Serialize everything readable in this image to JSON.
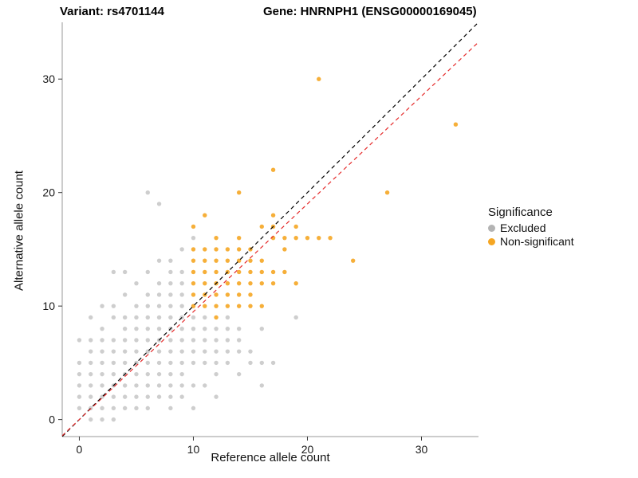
{
  "chart_data": {
    "type": "scatter",
    "titles": {
      "variant": "Variant: rs4701144",
      "gene": "Gene: HNRNPH1 (ENSG00000169045)"
    },
    "xlabel": "Reference allele count",
    "ylabel": "Alternative allele count",
    "xlim": [
      -1.5,
      35
    ],
    "ylim": [
      -1.5,
      35
    ],
    "xticks": [
      0,
      10,
      20,
      30
    ],
    "yticks": [
      0,
      10,
      20,
      30
    ],
    "grid": false,
    "legend": {
      "title": "Significance",
      "position": "right",
      "items": [
        {
          "label": "Excluded",
          "color": "#B3B3B3"
        },
        {
          "label": "Non-significant",
          "color": "#F5A623"
        }
      ]
    },
    "series": [
      {
        "name": "Excluded",
        "color": "#B3B3B3",
        "points": [
          [
            0,
            1
          ],
          [
            0,
            2
          ],
          [
            0,
            3
          ],
          [
            0,
            4
          ],
          [
            0,
            5
          ],
          [
            0,
            7
          ],
          [
            1,
            0
          ],
          [
            1,
            1
          ],
          [
            1,
            2
          ],
          [
            1,
            3
          ],
          [
            1,
            4
          ],
          [
            1,
            5
          ],
          [
            1,
            6
          ],
          [
            1,
            7
          ],
          [
            1,
            9
          ],
          [
            2,
            0
          ],
          [
            2,
            1
          ],
          [
            2,
            2
          ],
          [
            2,
            3
          ],
          [
            2,
            4
          ],
          [
            2,
            5
          ],
          [
            2,
            6
          ],
          [
            2,
            7
          ],
          [
            2,
            8
          ],
          [
            2,
            10
          ],
          [
            3,
            0
          ],
          [
            3,
            1
          ],
          [
            3,
            2
          ],
          [
            3,
            3
          ],
          [
            3,
            4
          ],
          [
            3,
            5
          ],
          [
            3,
            6
          ],
          [
            3,
            7
          ],
          [
            3,
            9
          ],
          [
            3,
            10
          ],
          [
            3,
            13
          ],
          [
            4,
            1
          ],
          [
            4,
            2
          ],
          [
            4,
            3
          ],
          [
            4,
            4
          ],
          [
            4,
            5
          ],
          [
            4,
            6
          ],
          [
            4,
            7
          ],
          [
            4,
            8
          ],
          [
            4,
            9
          ],
          [
            4,
            11
          ],
          [
            4,
            13
          ],
          [
            5,
            1
          ],
          [
            5,
            2
          ],
          [
            5,
            3
          ],
          [
            5,
            4
          ],
          [
            5,
            5
          ],
          [
            5,
            6
          ],
          [
            5,
            7
          ],
          [
            5,
            8
          ],
          [
            5,
            9
          ],
          [
            5,
            10
          ],
          [
            5,
            12
          ],
          [
            6,
            1
          ],
          [
            6,
            2
          ],
          [
            6,
            3
          ],
          [
            6,
            4
          ],
          [
            6,
            5
          ],
          [
            6,
            6
          ],
          [
            6,
            7
          ],
          [
            6,
            8
          ],
          [
            6,
            9
          ],
          [
            6,
            10
          ],
          [
            6,
            11
          ],
          [
            6,
            13
          ],
          [
            6,
            20
          ],
          [
            7,
            2
          ],
          [
            7,
            3
          ],
          [
            7,
            4
          ],
          [
            7,
            5
          ],
          [
            7,
            6
          ],
          [
            7,
            7
          ],
          [
            7,
            8
          ],
          [
            7,
            9
          ],
          [
            7,
            10
          ],
          [
            7,
            11
          ],
          [
            7,
            12
          ],
          [
            7,
            14
          ],
          [
            7,
            19
          ],
          [
            8,
            1
          ],
          [
            8,
            2
          ],
          [
            8,
            3
          ],
          [
            8,
            4
          ],
          [
            8,
            5
          ],
          [
            8,
            6
          ],
          [
            8,
            7
          ],
          [
            8,
            8
          ],
          [
            8,
            9
          ],
          [
            8,
            10
          ],
          [
            8,
            11
          ],
          [
            8,
            12
          ],
          [
            8,
            13
          ],
          [
            8,
            14
          ],
          [
            9,
            2
          ],
          [
            9,
            3
          ],
          [
            9,
            4
          ],
          [
            9,
            5
          ],
          [
            9,
            6
          ],
          [
            9,
            7
          ],
          [
            9,
            8
          ],
          [
            9,
            9
          ],
          [
            9,
            10
          ],
          [
            9,
            11
          ],
          [
            9,
            12
          ],
          [
            9,
            13
          ],
          [
            9,
            15
          ],
          [
            10,
            1
          ],
          [
            10,
            3
          ],
          [
            10,
            5
          ],
          [
            10,
            6
          ],
          [
            10,
            7
          ],
          [
            10,
            8
          ],
          [
            10,
            9
          ],
          [
            10,
            16
          ],
          [
            11,
            3
          ],
          [
            11,
            5
          ],
          [
            11,
            6
          ],
          [
            11,
            7
          ],
          [
            11,
            8
          ],
          [
            11,
            9
          ],
          [
            12,
            2
          ],
          [
            12,
            4
          ],
          [
            12,
            5
          ],
          [
            12,
            6
          ],
          [
            12,
            7
          ],
          [
            12,
            8
          ],
          [
            13,
            5
          ],
          [
            13,
            6
          ],
          [
            13,
            7
          ],
          [
            13,
            8
          ],
          [
            13,
            9
          ],
          [
            14,
            4
          ],
          [
            14,
            6
          ],
          [
            14,
            7
          ],
          [
            14,
            8
          ],
          [
            15,
            5
          ],
          [
            15,
            6
          ],
          [
            16,
            3
          ],
          [
            16,
            5
          ],
          [
            16,
            8
          ],
          [
            17,
            5
          ],
          [
            19,
            9
          ]
        ]
      },
      {
        "name": "Non-significant",
        "color": "#F5A623",
        "points": [
          [
            10,
            10
          ],
          [
            10,
            11
          ],
          [
            10,
            12
          ],
          [
            10,
            13
          ],
          [
            10,
            14
          ],
          [
            10,
            15
          ],
          [
            10,
            17
          ],
          [
            11,
            10
          ],
          [
            11,
            11
          ],
          [
            11,
            12
          ],
          [
            11,
            13
          ],
          [
            11,
            14
          ],
          [
            11,
            15
          ],
          [
            11,
            18
          ],
          [
            12,
            9
          ],
          [
            12,
            10
          ],
          [
            12,
            11
          ],
          [
            12,
            12
          ],
          [
            12,
            13
          ],
          [
            12,
            14
          ],
          [
            12,
            15
          ],
          [
            12,
            16
          ],
          [
            13,
            10
          ],
          [
            13,
            11
          ],
          [
            13,
            12
          ],
          [
            13,
            13
          ],
          [
            13,
            14
          ],
          [
            13,
            15
          ],
          [
            14,
            10
          ],
          [
            14,
            11
          ],
          [
            14,
            12
          ],
          [
            14,
            13
          ],
          [
            14,
            14
          ],
          [
            14,
            15
          ],
          [
            14,
            16
          ],
          [
            14,
            20
          ],
          [
            15,
            10
          ],
          [
            15,
            11
          ],
          [
            15,
            12
          ],
          [
            15,
            13
          ],
          [
            15,
            14
          ],
          [
            15,
            15
          ],
          [
            16,
            10
          ],
          [
            16,
            12
          ],
          [
            16,
            13
          ],
          [
            16,
            14
          ],
          [
            16,
            17
          ],
          [
            17,
            12
          ],
          [
            17,
            13
          ],
          [
            17,
            16
          ],
          [
            17,
            17
          ],
          [
            17,
            18
          ],
          [
            17,
            22
          ],
          [
            18,
            13
          ],
          [
            18,
            15
          ],
          [
            18,
            16
          ],
          [
            19,
            12
          ],
          [
            19,
            16
          ],
          [
            19,
            17
          ],
          [
            20,
            16
          ],
          [
            21,
            16
          ],
          [
            21,
            30
          ],
          [
            22,
            16
          ],
          [
            24,
            14
          ],
          [
            27,
            20
          ],
          [
            33,
            26
          ]
        ]
      }
    ],
    "lines": [
      {
        "name": "identity-line",
        "color": "#000000",
        "dash": "5,4",
        "slope": 1,
        "intercept": 0
      },
      {
        "name": "fit-line",
        "color": "#E52B2B",
        "dash": "5,4",
        "slope": 0.95,
        "intercept": 0
      }
    ]
  }
}
